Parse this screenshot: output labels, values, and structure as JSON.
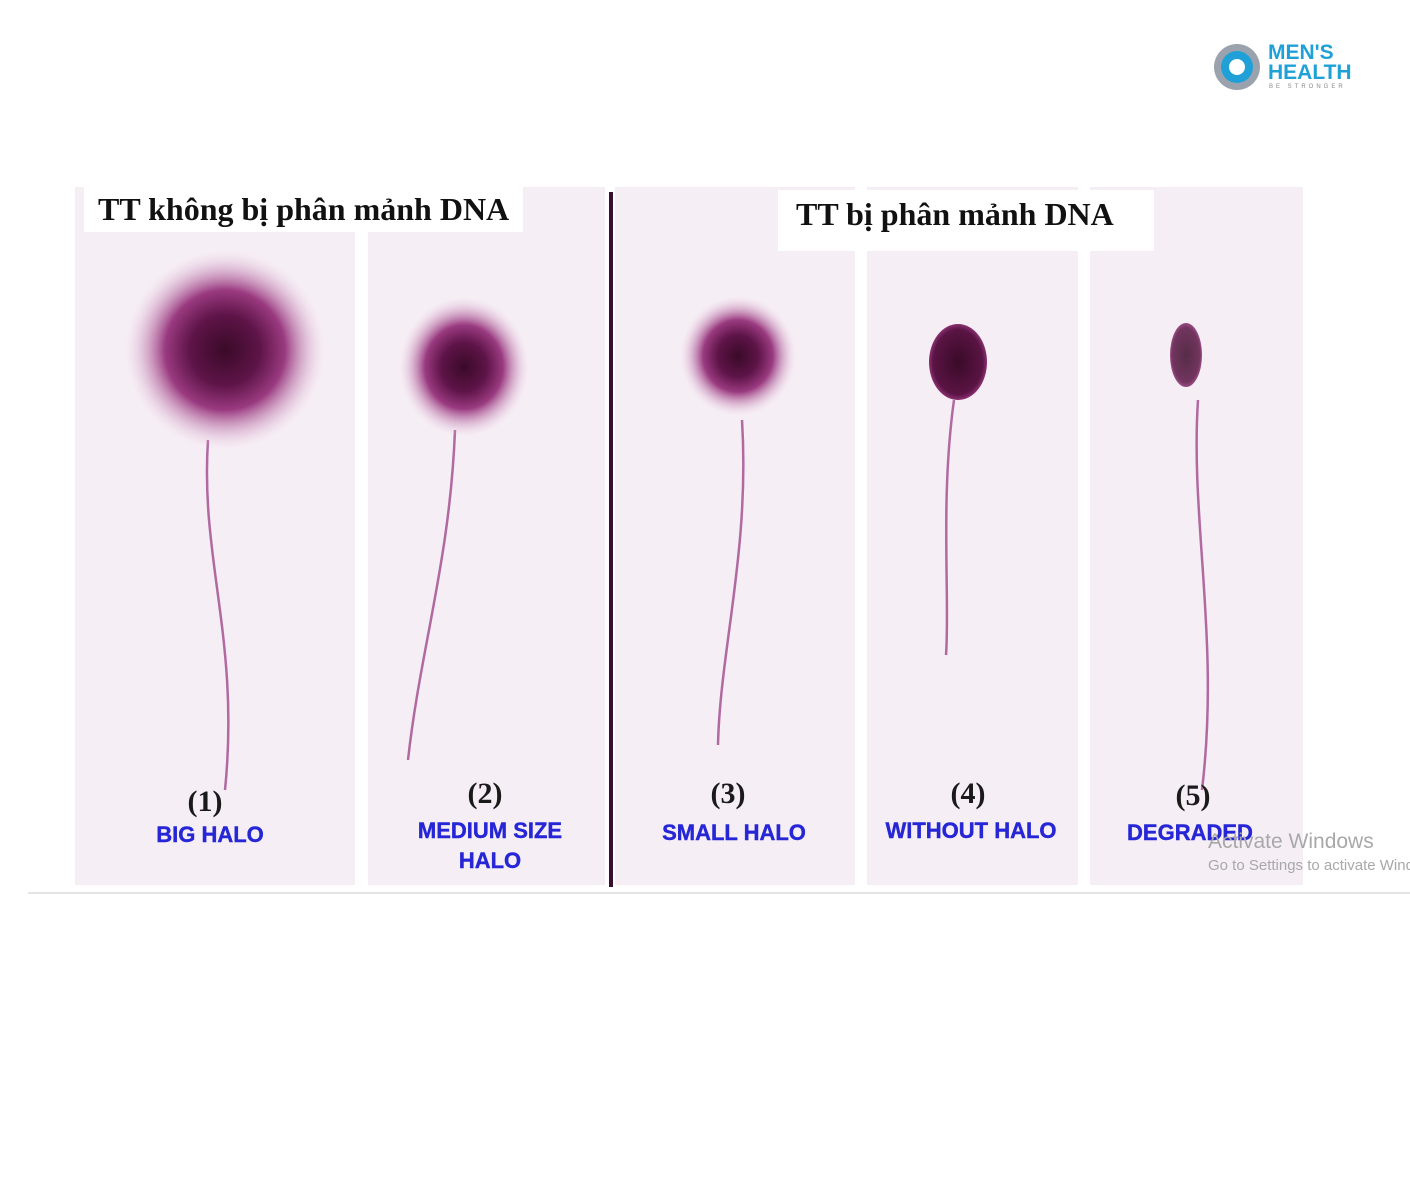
{
  "logo": {
    "line1": "MEN'S",
    "line2": "HEALTH",
    "tagline": "BE STRONGER"
  },
  "figure": {
    "groups": [
      {
        "title": "TT không bị phân mảnh DNA"
      },
      {
        "title": "TT bị phân mảnh DNA"
      }
    ],
    "panels": [
      {
        "number": "(1)",
        "label": "BIG HALO"
      },
      {
        "number": "(2)",
        "label": "MEDIUM SIZE HALO"
      },
      {
        "number": "(3)",
        "label": "SMALL HALO"
      },
      {
        "number": "(4)",
        "label": "WITHOUT HALO"
      },
      {
        "number": "(5)",
        "label": "DEGRADED"
      }
    ]
  },
  "watermark": {
    "title": "Activate Windows",
    "subtitle": "Go to Settings to activate Windows"
  }
}
